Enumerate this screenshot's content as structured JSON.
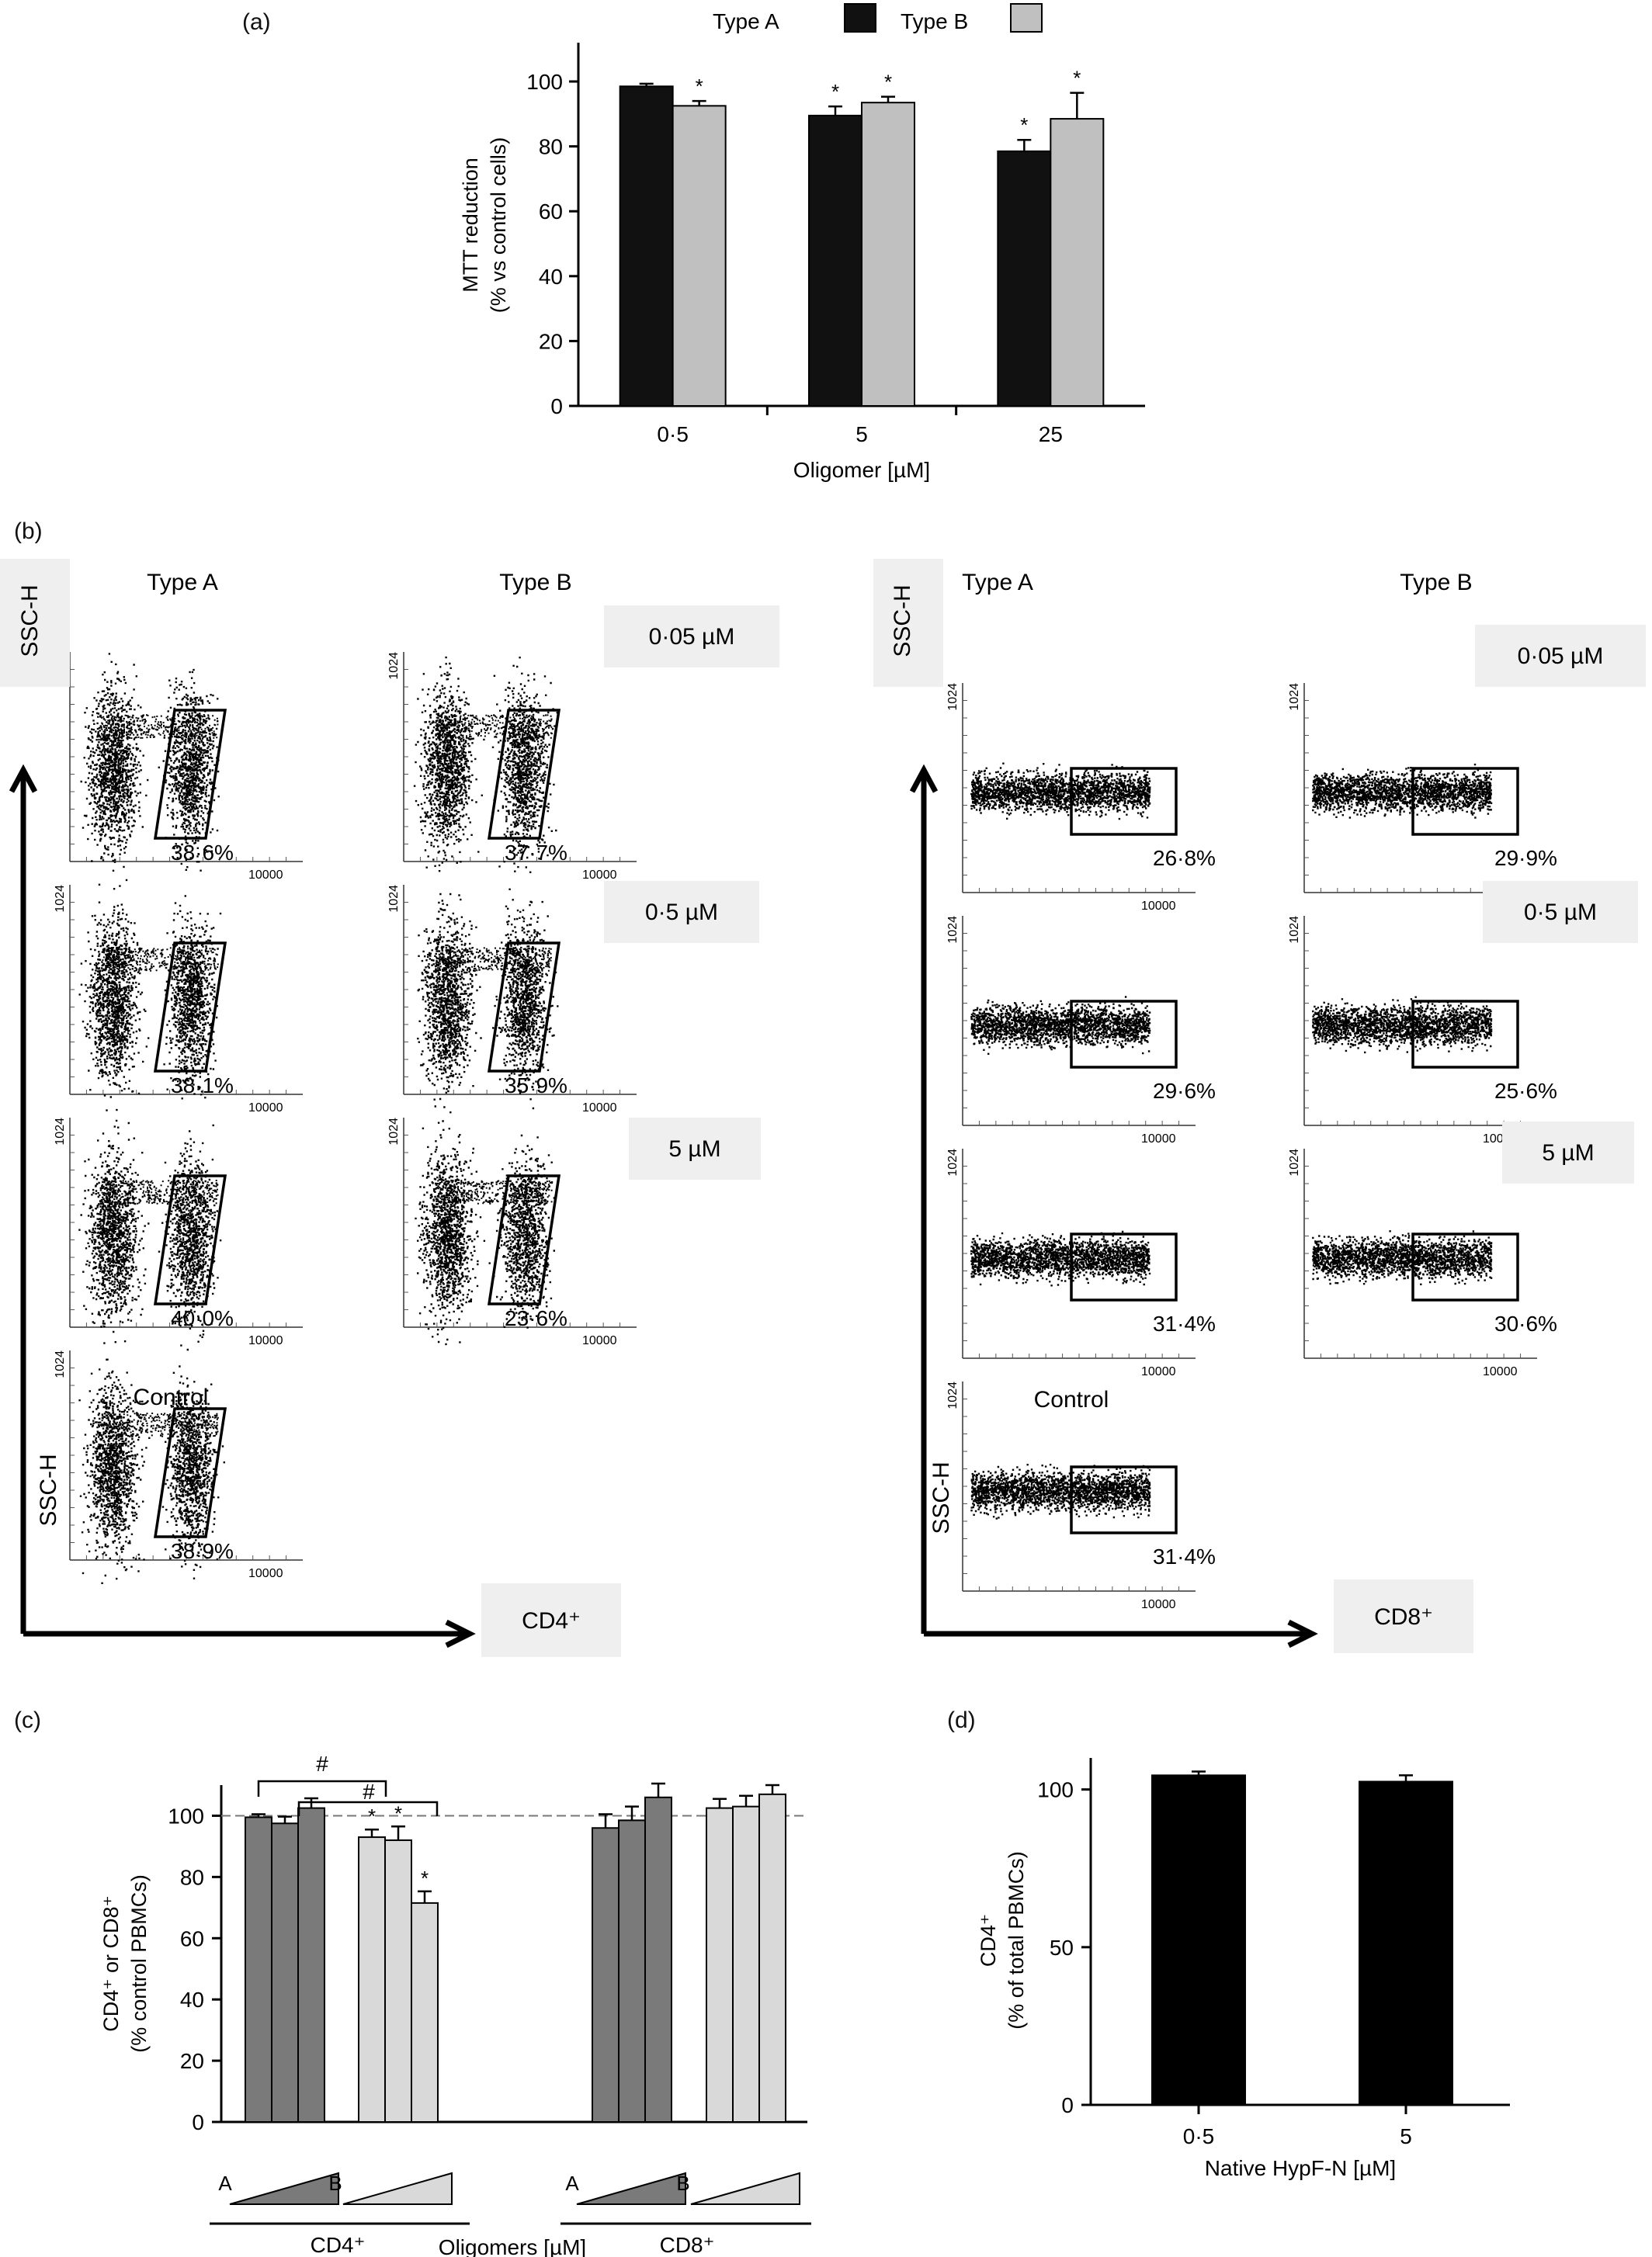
{
  "panel_labels": {
    "a": "(a)",
    "b": "(b)",
    "c": "(c)",
    "d": "(d)"
  },
  "chart_data": [
    {
      "id": "a",
      "type": "bar",
      "categories": [
        "0·5",
        "5",
        "25"
      ],
      "series": [
        {
          "name": "Type A",
          "values": [
            98.5,
            89.5,
            78.5
          ],
          "errors": [
            0.8,
            2.8,
            3.5
          ],
          "sig": [
            false,
            true,
            true
          ],
          "color": "#111111"
        },
        {
          "name": "Type B",
          "values": [
            92.5,
            93.5,
            88.5
          ],
          "errors": [
            1.5,
            1.8,
            8.0
          ],
          "sig": [
            true,
            true,
            true
          ],
          "color": "#c0c0c0"
        }
      ],
      "xlabel": "Oligomer [µM]",
      "ylabel_lines": [
        "MTT reduction",
        "(% vs control cells)"
      ],
      "ylim": [
        0,
        100
      ],
      "yticks": [
        "0",
        "20",
        "40",
        "60",
        "80",
        "100"
      ],
      "sig_mark": "*",
      "legend": "top"
    },
    {
      "id": "c",
      "type": "bar",
      "groups": [
        {
          "label": "A",
          "values": [
            99.5,
            97.5,
            102.5
          ],
          "errors": [
            1.0,
            2.2,
            3.2
          ],
          "sig": [
            false,
            false,
            false
          ],
          "color": "#7a7a7a"
        },
        {
          "label": "B",
          "values": [
            93.0,
            92.0,
            71.5
          ],
          "errors": [
            2.5,
            4.5,
            3.8
          ],
          "sig": [
            true,
            true,
            true
          ],
          "color": "#d9d9d9"
        },
        {
          "label": "A",
          "values": [
            96.0,
            98.5,
            106.0
          ],
          "errors": [
            4.5,
            4.5,
            4.5
          ],
          "sig": [
            false,
            false,
            false
          ],
          "color": "#7a7a7a"
        },
        {
          "label": "B",
          "values": [
            102.5,
            103.0,
            107.0
          ],
          "errors": [
            3.0,
            3.5,
            3.0
          ],
          "sig": [
            false,
            false,
            false
          ],
          "color": "#d9d9d9"
        }
      ],
      "populations": [
        "CD4⁺",
        "CD8⁺"
      ],
      "xlabel": "Oligomers [µM]",
      "ylabel_lines": [
        "CD4⁺ or CD8⁺",
        "(% control PBMCs)"
      ],
      "ylim": [
        0,
        110
      ],
      "yticks": [
        "0",
        "20",
        "40",
        "60",
        "80",
        "100"
      ],
      "reference_line": 100,
      "hash_mark": "#",
      "sig_mark": "*"
    },
    {
      "id": "d",
      "type": "bar",
      "categories": [
        "0·5",
        "5"
      ],
      "values": [
        104.5,
        102.5
      ],
      "errors": [
        1.2,
        2.0
      ],
      "xlabel": "Native HypF-N [µM]",
      "ylabel_lines": [
        "CD4⁺",
        "(% of total PBMCs)"
      ],
      "ylim": [
        0,
        110
      ],
      "yticks": [
        "0",
        "50",
        "100"
      ],
      "color": "#000000"
    }
  ],
  "flow": {
    "axis_y_label": "SSC-H",
    "axis_max_y": "1024",
    "axis_max_x": "10000",
    "col_a": "Type A",
    "col_b": "Type B",
    "control": "Control",
    "concentrations": [
      "0·05 µM",
      "0·5 µM",
      "5 µM"
    ],
    "cd4": {
      "x_axis_label": "CD4⁺",
      "type_a": [
        "38·6%",
        "38·1%",
        "40·0%"
      ],
      "type_b": [
        "37·7%",
        "35·9%",
        "23·6%"
      ],
      "control": "38·9%"
    },
    "cd8": {
      "x_axis_label": "CD8⁺",
      "type_a": [
        "26·8%",
        "29·6%",
        "31·4%"
      ],
      "type_b": [
        "29·9%",
        "25·6%",
        "30·6%"
      ],
      "control": "31·4%"
    }
  }
}
